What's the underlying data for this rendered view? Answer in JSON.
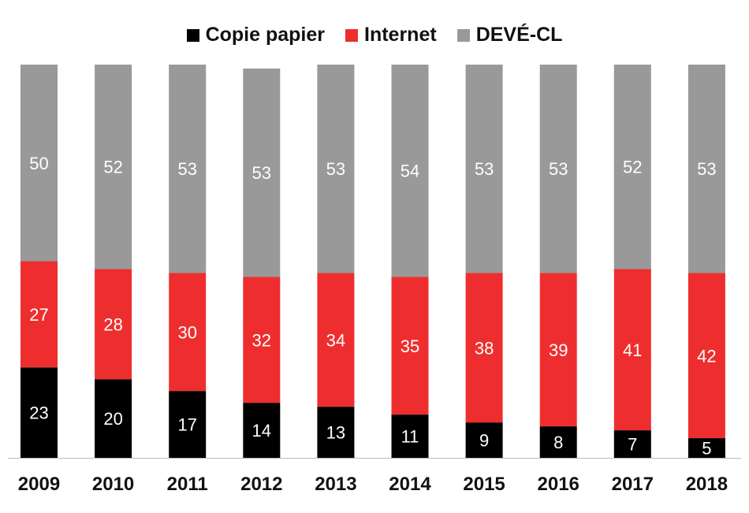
{
  "chart_data": {
    "type": "bar",
    "stacked": true,
    "title": "",
    "xlabel": "",
    "ylabel": "",
    "ylim": [
      0,
      100
    ],
    "categories": [
      "2009",
      "2010",
      "2011",
      "2012",
      "2013",
      "2014",
      "2015",
      "2016",
      "2017",
      "2018"
    ],
    "series": [
      {
        "name": "Copie papier",
        "color": "#000000",
        "values": [
          23,
          20,
          17,
          14,
          13,
          11,
          9,
          8,
          7,
          5
        ]
      },
      {
        "name": "Internet",
        "color": "#ee2e2e",
        "values": [
          27,
          28,
          30,
          32,
          34,
          35,
          38,
          39,
          41,
          42
        ]
      },
      {
        "name": "DEVÉ-CL",
        "color": "#999999",
        "values": [
          50,
          52,
          53,
          53,
          53,
          54,
          53,
          53,
          52,
          53
        ]
      }
    ],
    "legend_position": "top-center"
  }
}
